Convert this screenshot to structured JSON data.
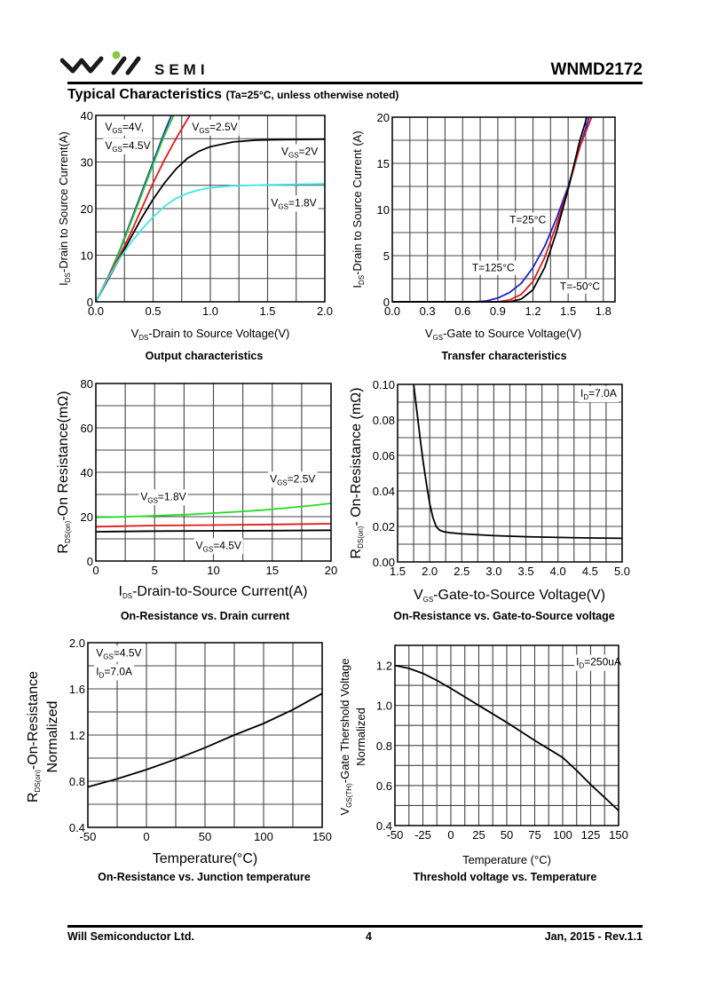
{
  "header": {
    "brand_name": "SEMI",
    "part_number": "WNMD2172",
    "section_title": "Typical Characteristics",
    "section_condition": "(Ta=25°C, unless otherwise noted)"
  },
  "footer": {
    "company": "Will Semiconductor Ltd.",
    "page": "4",
    "revision": "Jan, 2015 - Rev.1.1"
  },
  "colors": {
    "logo_dot": "#8dc63f",
    "grid": "#555555",
    "axis": "#000000"
  },
  "chart_data": [
    {
      "id": "output",
      "type": "line",
      "title": "Output characteristics",
      "xlabel_main": "V",
      "xlabel_sub": "DS",
      "xlabel_rest": "-Drain to Source Voltage(V)",
      "ylabel_main": "I",
      "ylabel_sub": "DS",
      "ylabel_rest": "-Drain to Source Current(A)",
      "xlim": [
        0,
        2.0
      ],
      "ylim": [
        0,
        40
      ],
      "xticks": [
        0.0,
        0.5,
        1.0,
        1.5,
        2.0
      ],
      "xtick_labels": [
        "0.0",
        "0.5",
        "1.0",
        "1.5",
        "2.0"
      ],
      "yticks": [
        0,
        10,
        20,
        30,
        40
      ],
      "ytick_labels": [
        "0",
        "10",
        "20",
        "30",
        "40"
      ],
      "xgrid_minor": [
        0.25,
        0.75,
        1.25,
        1.75
      ],
      "ygrid_minor": [
        5,
        15,
        25,
        35
      ],
      "grid": true,
      "series": [
        {
          "name": "VGS=4.5V",
          "color": "#1a33cc",
          "x": [
            0,
            0.1,
            0.2,
            0.3,
            0.4,
            0.5,
            0.6,
            0.66
          ],
          "y": [
            0,
            5,
            10.5,
            17,
            23.5,
            30,
            36.5,
            40
          ]
        },
        {
          "name": "VGS=4V",
          "color": "#22cc22",
          "x": [
            0,
            0.1,
            0.2,
            0.3,
            0.4,
            0.5,
            0.6,
            0.68
          ],
          "y": [
            0,
            5,
            10.3,
            16.6,
            23,
            29.5,
            35.8,
            40
          ]
        },
        {
          "name": "VGS=2.5V",
          "color": "#e01818",
          "x": [
            0,
            0.1,
            0.2,
            0.3,
            0.4,
            0.5,
            0.6,
            0.7,
            0.82
          ],
          "y": [
            0,
            5,
            9.5,
            14.5,
            20,
            25.5,
            30.5,
            35,
            40
          ]
        },
        {
          "name": "VGS=2V",
          "color": "#000000",
          "x": [
            0,
            0.1,
            0.2,
            0.3,
            0.4,
            0.5,
            0.6,
            0.7,
            0.8,
            0.9,
            1.0,
            1.2,
            1.4,
            1.6,
            2.0
          ],
          "y": [
            0,
            4.5,
            9,
            13.5,
            18,
            22,
            25.5,
            28.5,
            30.8,
            32.3,
            33.3,
            34.3,
            34.7,
            34.8,
            34.9
          ]
        },
        {
          "name": "VGS=1.8V",
          "color": "#3ee8e8",
          "x": [
            0,
            0.1,
            0.2,
            0.3,
            0.4,
            0.5,
            0.6,
            0.7,
            0.8,
            0.9,
            1.0,
            1.2,
            1.5,
            2.0
          ],
          "y": [
            0,
            4.8,
            9,
            12.5,
            15.5,
            18.2,
            20.5,
            22.2,
            23.3,
            24,
            24.5,
            24.9,
            25.1,
            25.3
          ]
        }
      ],
      "annotations": [
        {
          "main": "V",
          "sub": "GS",
          "rest": "=4V,",
          "x": 0.08,
          "y": 36.8
        },
        {
          "main": "V",
          "sub": "GS",
          "rest": "=4.5V",
          "x": 0.08,
          "y": 32.8
        },
        {
          "main": "V",
          "sub": "GS",
          "rest": "=2.5V",
          "x": 0.84,
          "y": 36.8
        },
        {
          "main": "V",
          "sub": "GS",
          "rest": "=2V",
          "x": 1.62,
          "y": 31.5
        },
        {
          "main": "V",
          "sub": "GS",
          "rest": "=1.8V",
          "x": 1.53,
          "y": 20.5
        }
      ]
    },
    {
      "id": "transfer",
      "type": "line",
      "title": "Transfer characteristics",
      "xlabel_main": "V",
      "xlabel_sub": "GS",
      "xlabel_rest": "-Gate to Source Voltage(V)",
      "ylabel_main": "I",
      "ylabel_sub": "DS",
      "ylabel_rest": "-Drain to Source Current (A)",
      "xlim": [
        0,
        1.9
      ],
      "ylim": [
        0,
        20
      ],
      "xticks": [
        0.0,
        0.3,
        0.6,
        0.9,
        1.2,
        1.5,
        1.8
      ],
      "xtick_labels": [
        "0.0",
        "0.3",
        "0.6",
        "0.9",
        "1.2",
        "1.5",
        "1.8"
      ],
      "yticks": [
        0,
        5,
        10,
        15,
        20
      ],
      "ytick_labels": [
        "0",
        "5",
        "10",
        "15",
        "20"
      ],
      "xgrid_minor": [
        0.15,
        0.45,
        0.75,
        1.05,
        1.35,
        1.65
      ],
      "ygrid_minor": [
        2.5,
        7.5,
        12.5,
        17.5
      ],
      "grid": true,
      "series": [
        {
          "name": "T=125°C",
          "color": "#1a22cc",
          "x": [
            0,
            0.7,
            0.8,
            0.9,
            1.0,
            1.1,
            1.2,
            1.3,
            1.4,
            1.5,
            1.6,
            1.68
          ],
          "y": [
            0,
            0,
            0.1,
            0.4,
            1.0,
            2.0,
            3.7,
            6.0,
            9.0,
            12.5,
            16.8,
            20
          ]
        },
        {
          "name": "T=25°C",
          "color": "#e01818",
          "x": [
            0,
            0.9,
            1.0,
            1.1,
            1.2,
            1.3,
            1.4,
            1.5,
            1.6,
            1.7
          ],
          "y": [
            0,
            0,
            0.2,
            0.8,
            2.2,
            4.8,
            8.3,
            12.3,
            16.8,
            20
          ]
        },
        {
          "name": "T=-50°C",
          "color": "#000000",
          "x": [
            0,
            1.0,
            1.1,
            1.2,
            1.3,
            1.4,
            1.5,
            1.6,
            1.66
          ],
          "y": [
            0,
            0,
            0.3,
            1.3,
            3.7,
            7.5,
            12.2,
            17.5,
            20
          ]
        }
      ],
      "annotations": [
        {
          "main": "T=25°C",
          "sub": "",
          "rest": "",
          "x": 1.0,
          "y": 8.5
        },
        {
          "main": "T=125°C",
          "sub": "",
          "rest": "",
          "x": 0.68,
          "y": 3.3
        },
        {
          "main": "T=-50°C",
          "sub": "",
          "rest": "",
          "x": 1.43,
          "y": 1.3
        }
      ]
    },
    {
      "id": "ron-vs-id",
      "type": "line",
      "title": "On-Resistance vs. Drain current",
      "xlabel_main": "I",
      "xlabel_sub": "DS",
      "xlabel_rest": "-Drain-to-Source Current(A)",
      "ylabel_main": "R",
      "ylabel_sub": "DS(on)",
      "ylabel_rest": "-On Resistance(mΩ)",
      "xlim": [
        0,
        20
      ],
      "ylim": [
        0,
        80
      ],
      "xticks": [
        0,
        5,
        10,
        15,
        20
      ],
      "xtick_labels": [
        "0",
        "5",
        "10",
        "15",
        "20"
      ],
      "yticks": [
        0,
        20,
        40,
        60,
        80
      ],
      "ytick_labels": [
        "0",
        "20",
        "40",
        "60",
        "80"
      ],
      "xgrid_minor": [
        2.5,
        7.5,
        12.5,
        17.5
      ],
      "ygrid_minor": [
        10,
        30,
        50,
        70
      ],
      "grid": true,
      "series": [
        {
          "name": "VGS=1.8V",
          "color": "#22dd22",
          "x": [
            0,
            2,
            4,
            6,
            8,
            10,
            12,
            14,
            16,
            18,
            20
          ],
          "y": [
            19.7,
            19.9,
            20.2,
            20.6,
            21,
            21.6,
            22.2,
            22.9,
            23.8,
            24.8,
            26
          ]
        },
        {
          "name": "VGS=2.5V",
          "color": "#e01818",
          "x": [
            0,
            5,
            10,
            15,
            20
          ],
          "y": [
            15.5,
            16,
            16.2,
            16.5,
            16.8
          ]
        },
        {
          "name": "VGS=4.5V",
          "color": "#000000",
          "x": [
            0,
            5,
            10,
            15,
            20
          ],
          "y": [
            13.2,
            13.5,
            13.6,
            13.7,
            13.9
          ]
        }
      ],
      "annotations": [
        {
          "main": "V",
          "sub": "GS",
          "rest": "=1.8V",
          "x": 3.8,
          "y": 27.5
        },
        {
          "main": "V",
          "sub": "GS",
          "rest": "=2.5V",
          "x": 14.8,
          "y": 35.5
        },
        {
          "main": "V",
          "sub": "GS",
          "rest": "=4.5V",
          "x": 8.5,
          "y": 5.5
        }
      ]
    },
    {
      "id": "ron-vs-vgs",
      "type": "line",
      "title": "On-Resistance vs. Gate-to-Source voltage",
      "xlabel_main": "V",
      "xlabel_sub": "GS",
      "xlabel_rest": "-Gate-to-Source Voltage(V)",
      "ylabel_main": "R",
      "ylabel_sub": "DS(on)",
      "ylabel_rest": "- On-Resistance (mΩ)",
      "xlim": [
        1.5,
        5.0
      ],
      "ylim": [
        0,
        0.1
      ],
      "xticks": [
        1.5,
        2.0,
        2.5,
        3.0,
        3.5,
        4.0,
        4.5,
        5.0
      ],
      "xtick_labels": [
        "1.5",
        "2.0",
        "2.5",
        "3.0",
        "3.5",
        "4.0",
        "4.5",
        "5.0"
      ],
      "yticks": [
        0,
        0.02,
        0.04,
        0.06,
        0.08,
        0.1
      ],
      "ytick_labels": [
        "0.00",
        "0.02",
        "0.04",
        "0.06",
        "0.08",
        "0.10"
      ],
      "xgrid_minor": [
        1.75,
        2.25,
        2.75,
        3.25,
        3.75,
        4.25,
        4.75
      ],
      "ygrid_minor": [
        0.01,
        0.03,
        0.05,
        0.07,
        0.09
      ],
      "grid": true,
      "series": [
        {
          "name": "ID=7.0A",
          "color": "#000000",
          "x": [
            1.75,
            1.8,
            1.85,
            1.9,
            1.95,
            2.0,
            2.05,
            2.1,
            2.15,
            2.2,
            2.3,
            2.5,
            3.0,
            3.5,
            4.0,
            4.5,
            5.0
          ],
          "y": [
            0.1,
            0.085,
            0.07,
            0.056,
            0.044,
            0.033,
            0.025,
            0.02,
            0.018,
            0.0172,
            0.0165,
            0.0158,
            0.0148,
            0.0142,
            0.0138,
            0.0135,
            0.0133
          ]
        }
      ],
      "annotations": [
        {
          "main": "I",
          "sub": "D",
          "rest": "=7.0A",
          "x": 4.35,
          "y": 0.093
        }
      ]
    },
    {
      "id": "ron-vs-temp",
      "type": "line",
      "title": "On-Resistance vs. Junction temperature",
      "xlabel_main": "Temperature(°C)",
      "xlabel_sub": "",
      "xlabel_rest": "",
      "ylabel_main": "R",
      "ylabel_sub": "DS(on)",
      "ylabel_rest": "-On-Resistance",
      "ylabel_line2": "Normalized",
      "xlim": [
        -50,
        150
      ],
      "ylim": [
        0.4,
        2.0
      ],
      "xticks": [
        -50,
        0,
        50,
        100,
        150
      ],
      "xtick_labels": [
        "-50",
        "0",
        "50",
        "100",
        "150"
      ],
      "yticks": [
        0.4,
        0.8,
        1.2,
        1.6,
        2.0
      ],
      "ytick_labels": [
        "0.4",
        "0.8",
        "1.2",
        "1.6",
        "2.0"
      ],
      "xgrid_minor": [
        -25,
        25,
        75,
        125
      ],
      "ygrid_minor": [
        0.6,
        1.0,
        1.4,
        1.8
      ],
      "grid": true,
      "series": [
        {
          "name": "VGS=4.5V, ID=7.0A",
          "color": "#000000",
          "x": [
            -50,
            -25,
            0,
            25,
            50,
            75,
            100,
            125,
            150
          ],
          "y": [
            0.75,
            0.82,
            0.9,
            0.99,
            1.09,
            1.2,
            1.3,
            1.42,
            1.56
          ]
        }
      ],
      "annotations": [
        {
          "main": "V",
          "sub": "GS",
          "rest": "=4.5V",
          "x": -43,
          "y": 1.88
        },
        {
          "main": "I",
          "sub": "D",
          "rest": "=7.0A",
          "x": -43,
          "y": 1.72
        }
      ]
    },
    {
      "id": "vth-vs-temp",
      "type": "line",
      "title": "Threshold voltage vs. Temperature",
      "xlabel_main": "Temperature (°C)",
      "xlabel_sub": "",
      "xlabel_rest": "",
      "ylabel_main": "V",
      "ylabel_sub": "GS(TH)",
      "ylabel_rest": "-Gate Thershold Voltage",
      "ylabel_line2": "Normalized",
      "xlim": [
        -50,
        150
      ],
      "ylim": [
        0.4,
        1.3
      ],
      "xticks": [
        -50,
        -25,
        0,
        25,
        50,
        75,
        100,
        125,
        150
      ],
      "xtick_labels": [
        "-50",
        "-25",
        "0",
        "25",
        "50",
        "75",
        "100",
        "125",
        "150"
      ],
      "yticks": [
        0.4,
        0.6,
        0.8,
        1.0,
        1.2
      ],
      "ytick_labels": [
        "0.4",
        "0.6",
        "0.8",
        "1.0",
        "1.2"
      ],
      "xgrid_minor": [
        -37.5,
        -12.5,
        12.5,
        37.5,
        62.5,
        87.5,
        112.5,
        137.5
      ],
      "ygrid_minor": [
        0.5,
        0.7,
        0.9,
        1.1
      ],
      "grid": true,
      "series": [
        {
          "name": "ID=250uA",
          "color": "#000000",
          "x": [
            -50,
            -37.5,
            -25,
            -12.5,
            0,
            25,
            50,
            75,
            100,
            112.5,
            125,
            137.5,
            150
          ],
          "y": [
            1.2,
            1.185,
            1.16,
            1.125,
            1.085,
            1.0,
            0.915,
            0.825,
            0.74,
            0.675,
            0.605,
            0.54,
            0.475
          ]
        }
      ],
      "annotations": [
        {
          "main": "I",
          "sub": "D",
          "rest": "=250uA",
          "x": 112,
          "y": 1.2
        }
      ]
    }
  ]
}
